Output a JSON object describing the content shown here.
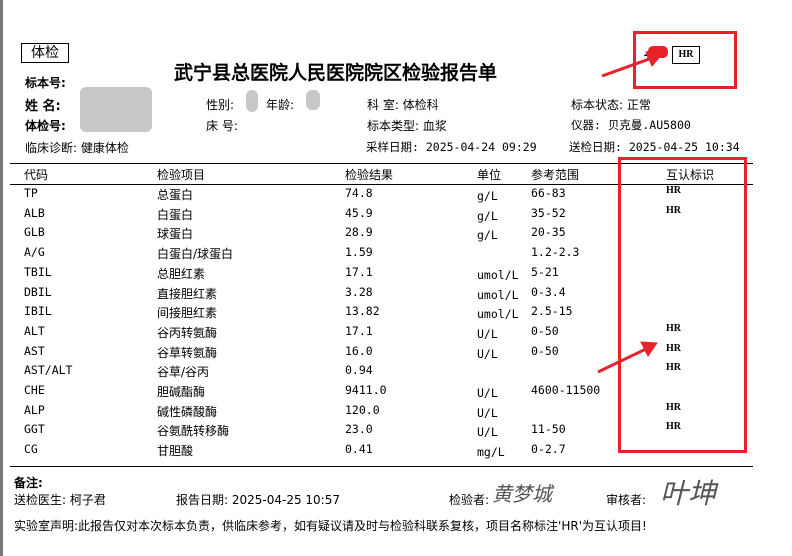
{
  "report": {
    "tag": "体检",
    "title": "武宁县总医院人民医院院区检验报告单",
    "hr_mark": "HR",
    "fields": {
      "specimen_no_label": "标本号:",
      "name_label": "姓    名:",
      "exam_no_label": "体检号:",
      "diagnosis": "临床诊断: 健康体检",
      "sex_label": "性别:",
      "age_label": "年龄:",
      "bed_label": "床      号:",
      "dept": "科      室: 体检科",
      "specimen_type": "标本类型: 血浆",
      "sample_date": "采样日期: 2025-04-24 09:29",
      "specimen_status": "标本状态: 正常",
      "instrument": "仪器: 贝克曼.AU5800",
      "submit_date": "送检日期: 2025-04-25 10:34"
    },
    "columns": [
      "代码",
      "检验项目",
      "检验结果",
      "单位",
      "参考范围",
      "互认标识"
    ],
    "rows": [
      {
        "code": "TP",
        "item": "总蛋白",
        "result": "74.8",
        "unit": "g/L",
        "ref": "66-83",
        "hr": "HR"
      },
      {
        "code": "ALB",
        "item": "白蛋白",
        "result": "45.9",
        "unit": "g/L",
        "ref": "35-52",
        "hr": "HR"
      },
      {
        "code": "GLB",
        "item": "球蛋白",
        "result": "28.9",
        "unit": "g/L",
        "ref": "20-35",
        "hr": ""
      },
      {
        "code": "A/G",
        "item": "白蛋白/球蛋白",
        "result": "1.59",
        "unit": "",
        "ref": "1.2-2.3",
        "hr": ""
      },
      {
        "code": "TBIL",
        "item": "总胆红素",
        "result": "17.1",
        "unit": "umol/L",
        "ref": "5-21",
        "hr": ""
      },
      {
        "code": "DBIL",
        "item": "直接胆红素",
        "result": "3.28",
        "unit": "umol/L",
        "ref": "0-3.4",
        "hr": ""
      },
      {
        "code": "IBIL",
        "item": "间接胆红素",
        "result": "13.82",
        "unit": "umol/L",
        "ref": "2.5-15",
        "hr": ""
      },
      {
        "code": "ALT",
        "item": "谷丙转氨酶",
        "result": "17.1",
        "unit": "U/L",
        "ref": "0-50",
        "hr": "HR"
      },
      {
        "code": "AST",
        "item": "谷草转氨酶",
        "result": "16.0",
        "unit": "U/L",
        "ref": "0-50",
        "hr": "HR"
      },
      {
        "code": "AST/ALT",
        "item": "谷草/谷丙",
        "result": "0.94",
        "unit": "",
        "ref": "",
        "hr": "HR"
      },
      {
        "code": "CHE",
        "item": "胆碱酯酶",
        "result": "9411.0",
        "unit": "U/L",
        "ref": "4600-11500",
        "hr": ""
      },
      {
        "code": "ALP",
        "item": "碱性磷酸酶",
        "result": "120.0",
        "unit": "U/L",
        "ref": "",
        "hr": "HR"
      },
      {
        "code": "GGT",
        "item": "谷氨酰转移酶",
        "result": "23.0",
        "unit": "U/L",
        "ref": "11-50",
        "hr": "HR"
      },
      {
        "code": "CG",
        "item": "甘胆酸",
        "result": "0.41",
        "unit": "mg/L",
        "ref": "0-2.7",
        "hr": ""
      }
    ],
    "footer": {
      "remarks": "备注:",
      "doctor": "送检医生: 柯子君",
      "report_date": "报告日期: 2025-04-25 10:57",
      "inspector_label": "检验者:",
      "inspector_signature": "黄梦城",
      "reviewer_label": "审核者:",
      "reviewer_signature": "叶坤",
      "statement": "实验室声明:此报告仅对本次标本负责，供临床参考，如有疑议请及时与检验科联系复核，项目名称标注'HR'为互认项目!"
    },
    "annotation_color": "#e8212a"
  }
}
